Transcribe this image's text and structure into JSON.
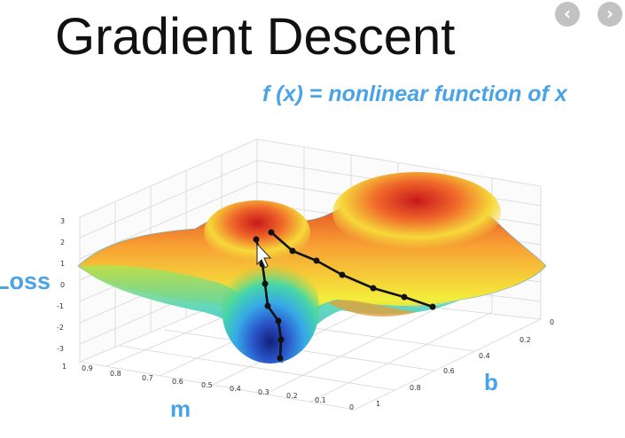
{
  "header": {
    "title": "Gradient Descent",
    "subtitle": "f (x) = nonlinear function of x"
  },
  "nav": {
    "prev_glyph": "‹",
    "next_glyph": "›"
  },
  "axes": {
    "z_label": "Loss",
    "x_label": "m",
    "y_label": "b",
    "z_ticks": [
      "3",
      "2",
      "1",
      "0",
      "-1",
      "-2",
      "-3"
    ],
    "m_ticks": [
      "1",
      "0.9",
      "0.8",
      "0.7",
      "0.6",
      "0.5",
      "0.4",
      "0.3",
      "0.2",
      "0.1",
      "0"
    ],
    "b_ticks": [
      "0",
      "0.2",
      "0.4",
      "0.6",
      "0.8",
      "1"
    ]
  },
  "colors": {
    "accent": "#4aa3e6",
    "path": "#111111",
    "surface_high": "#d7261e",
    "surface_mid": "#f5e83a",
    "surface_low": "#1d3fb0"
  },
  "icons": {
    "cursor": "mouse-pointer-icon"
  }
}
